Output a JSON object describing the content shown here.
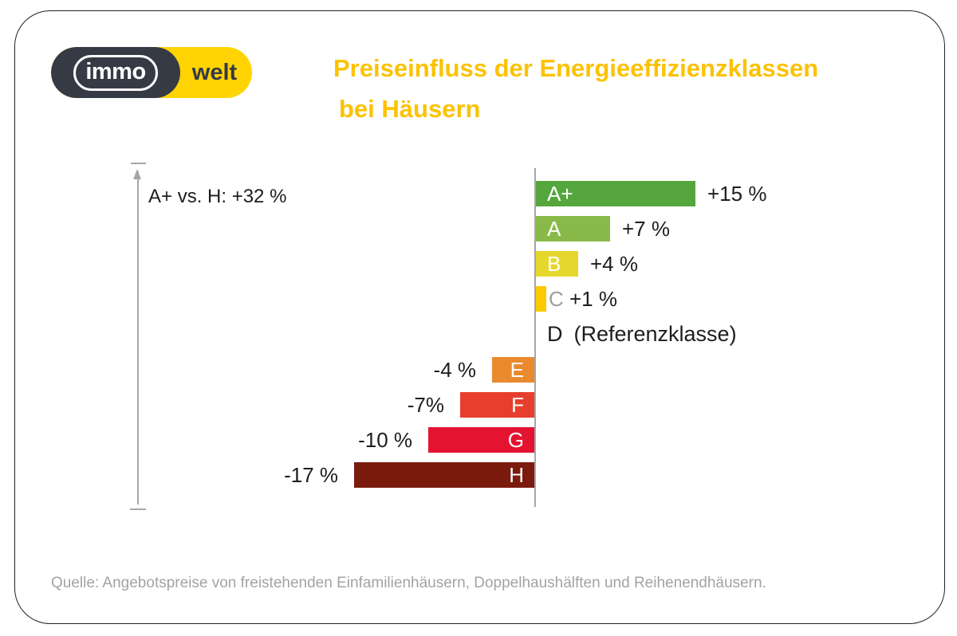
{
  "page": {
    "background": "#ffffff",
    "card_border_color": "#222222"
  },
  "logo": {
    "part1": "immo",
    "part2": "welt",
    "dark_color": "#363a45",
    "yellow_color": "#ffd402"
  },
  "title": {
    "line1": "Preiseinfluss der Energieeffizienzklassen",
    "line2": "bei Häusern",
    "color": "#fcc200"
  },
  "annotation": {
    "label": "A+ vs. H: +32 %"
  },
  "source": {
    "text": "Quelle: Angebotspreise von freistehenden Einfamilienhäusern, Doppelhaushälften und Reihenendhäusern."
  },
  "chart_data": {
    "type": "bar",
    "orientation": "horizontal",
    "title": "Preiseinfluss der Energieeffizienzklassen bei Häusern",
    "categories": [
      "A+",
      "A",
      "B",
      "C",
      "D",
      "E",
      "F",
      "G",
      "H"
    ],
    "values": [
      15,
      7,
      4,
      1,
      0,
      -4,
      -7,
      -10,
      -17
    ],
    "value_labels": [
      "+15 %",
      "+7 %",
      "+4 %",
      "+1 %",
      "(Referenzklasse)",
      "-4 %",
      "-7%",
      "-10 %",
      "-17 %"
    ],
    "bar_colors": [
      "#56a63e",
      "#89ba49",
      "#e6d72c",
      "#fcca00",
      null,
      "#ea8a2f",
      "#e73e2d",
      "#e41430",
      "#7b1b0e"
    ],
    "letter_colors": [
      "#ffffff",
      "#ffffff",
      "#ffffff",
      "#9e9e9e",
      "#1d1d1b",
      "#ffffff",
      "#ffffff",
      "#ffffff",
      "#ffffff"
    ],
    "reference_category": "D",
    "annotation": "A+ vs. H: +32 %",
    "axis": {
      "x_range": [
        -17,
        15
      ],
      "unit": "%",
      "gridlines": false,
      "zero_line_color": "#a6a6a6"
    }
  }
}
